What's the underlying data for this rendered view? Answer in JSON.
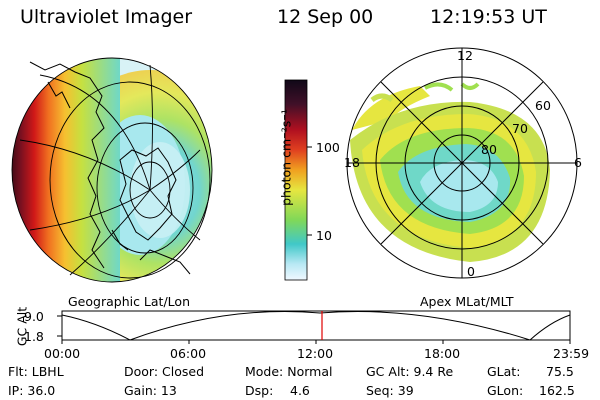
{
  "header": {
    "instrument": "Ultraviolet Imager",
    "date": "12 Sep 00",
    "time": "12:19:53 UT"
  },
  "left_panel": {
    "caption": "Geographic Lat/Lon"
  },
  "right_panel": {
    "caption": "Apex MLat/MLT",
    "mlt_labels": {
      "top": "12",
      "left": "18",
      "right": "6",
      "bottom": "0"
    },
    "lat_labels": [
      "60",
      "70",
      "80"
    ]
  },
  "colorbar": {
    "label": "photon cm⁻²s⁻¹",
    "ticks": [
      "100",
      "10"
    ]
  },
  "altitude_plot": {
    "ylabel": "GC Alt",
    "yticks": [
      "9.0",
      "1.8"
    ],
    "xticks": [
      "00:00",
      "06:00",
      "12:00",
      "18:00",
      "23:59"
    ],
    "marker_color": "#e00000"
  },
  "status": {
    "filter": "Flt: LBHL",
    "ip": "IP: 36.0",
    "door": "Door: Closed",
    "gain": "Gain: 13",
    "mode": "Mode: Normal",
    "dsp_label": "Dsp:",
    "dsp_value": "4.6",
    "gc_alt": "GC Alt: 9.4 Re",
    "seq": "Seq: 39",
    "glat_label": "GLat:",
    "glat_value": "75.5",
    "glon_label": "GLon:",
    "glon_value": "162.5"
  }
}
